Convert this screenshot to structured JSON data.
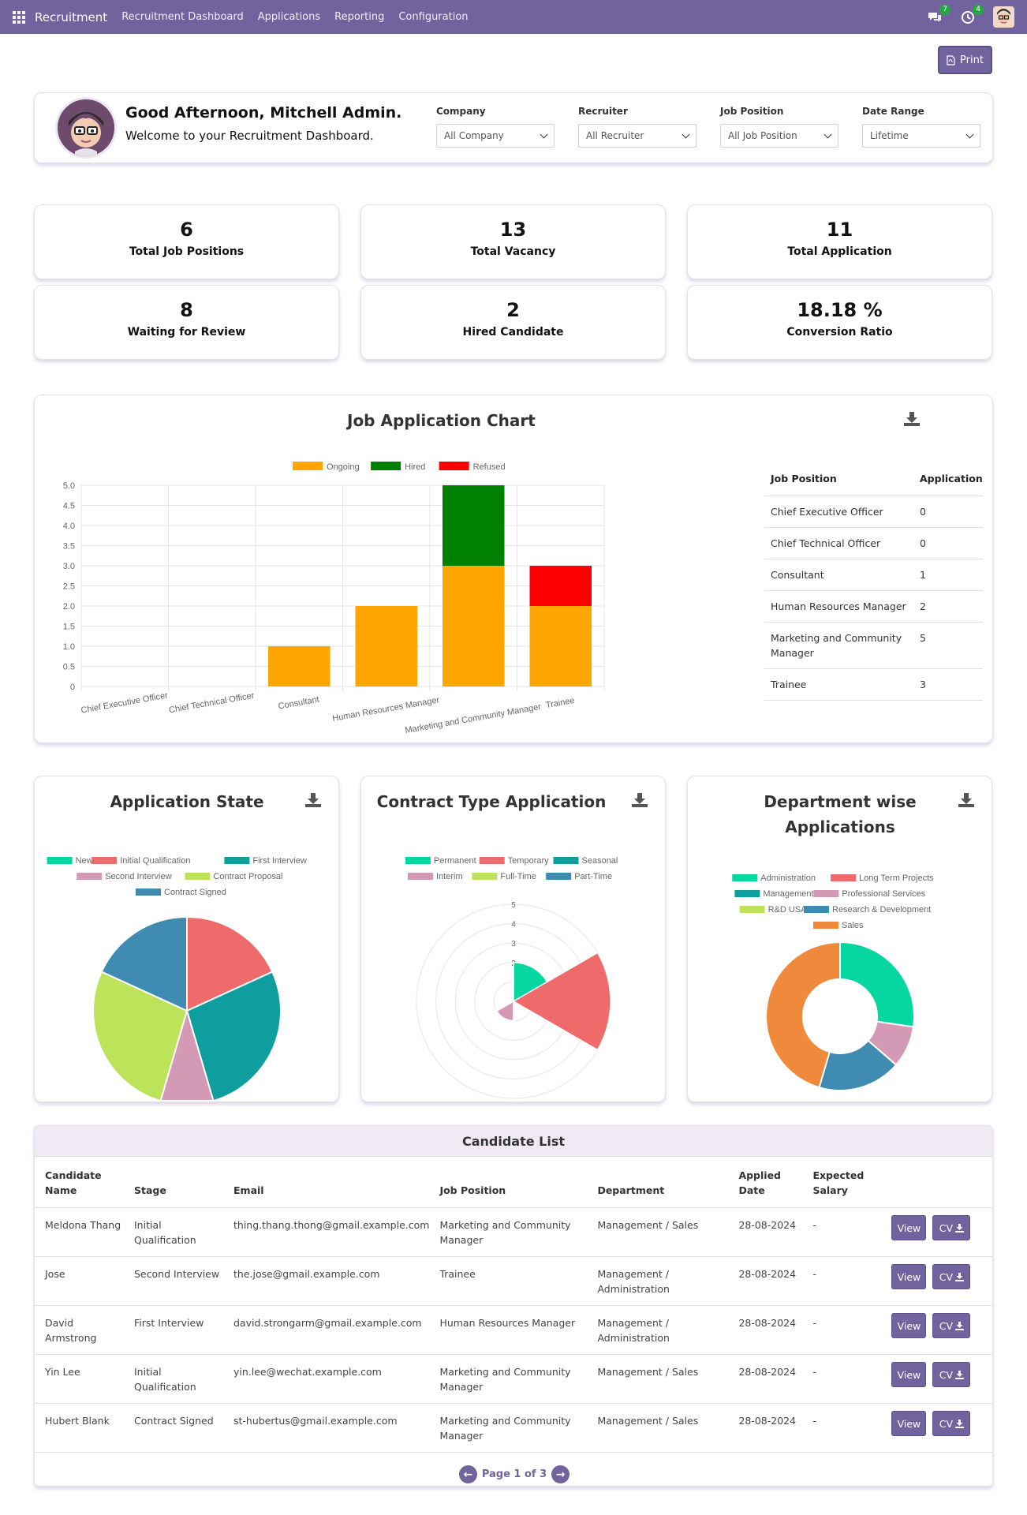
{
  "navbar": {
    "brand": "Recruitment",
    "menu": [
      "Recruitment Dashboard",
      "Applications",
      "Reporting",
      "Configuration"
    ],
    "messages_badge": "7",
    "activities_badge": "4"
  },
  "print_label": "Print",
  "welcome": {
    "greeting": "Good Afternoon, Mitchell Admin.",
    "subtitle": "Welcome to your Recruitment Dashboard."
  },
  "filters": [
    {
      "label": "Company",
      "value": "All Company"
    },
    {
      "label": "Recruiter",
      "value": "All Recruiter"
    },
    {
      "label": "Job Position",
      "value": "All Job Position"
    },
    {
      "label": "Date Range",
      "value": "Lifetime"
    }
  ],
  "stats": [
    {
      "value": "6",
      "label": "Total Job Positions"
    },
    {
      "value": "13",
      "label": "Total Vacancy"
    },
    {
      "value": "11",
      "label": "Total Application"
    },
    {
      "value": "8",
      "label": "Waiting for Review"
    },
    {
      "value": "2",
      "label": "Hired Candidate"
    },
    {
      "value": "18.18 %",
      "label": "Conversion Ratio"
    }
  ],
  "job_chart_title": "Job Application Chart",
  "job_table": {
    "headers": [
      "Job Position",
      "Application"
    ],
    "rows": [
      [
        "Chief Executive Officer",
        "0"
      ],
      [
        "Chief Technical Officer",
        "0"
      ],
      [
        "Consultant",
        "1"
      ],
      [
        "Human Resources Manager",
        "2"
      ],
      [
        "Marketing and Community Manager",
        "5"
      ],
      [
        "Trainee",
        "3"
      ]
    ]
  },
  "small_charts": {
    "state_title": "Application State",
    "contract_title": "Contract Type Application",
    "dept_title": "Department wise Applications"
  },
  "chart_data": [
    {
      "type": "bar",
      "stacked": true,
      "title": "Job Application Chart",
      "categories": [
        "Chief Executive Officer",
        "Chief Technical Officer",
        "Consultant",
        "Human Resources Manager",
        "Marketing and Community Manager",
        "Trainee"
      ],
      "series": [
        {
          "name": "Ongoing",
          "color": "#ffa500",
          "values": [
            0,
            0,
            1,
            2,
            3,
            2
          ]
        },
        {
          "name": "Hired",
          "color": "#008000",
          "values": [
            0,
            0,
            0,
            0,
            2,
            0
          ]
        },
        {
          "name": "Refused",
          "color": "#ff0000",
          "values": [
            0,
            0,
            0,
            0,
            0,
            1
          ]
        }
      ],
      "ylim": [
        0,
        5
      ],
      "yticks": [
        "0",
        "0.5",
        "1.0",
        "1.5",
        "2.0",
        "2.5",
        "3.0",
        "3.5",
        "4.0",
        "4.5",
        "5.0"
      ],
      "legend": "top",
      "grid": true
    },
    {
      "type": "pie",
      "title": "Application State",
      "labels": [
        "New",
        "Initial Qualification",
        "First Interview",
        "Second Interview",
        "Contract Proposal",
        "Contract Signed"
      ],
      "colors": [
        "#06d6a0",
        "#ef6a6a",
        "#0f9e9e",
        "#d49ab5",
        "#bde35a",
        "#3f8bb1"
      ],
      "values": [
        0,
        2,
        3,
        1,
        3,
        2
      ],
      "legend": "top"
    },
    {
      "type": "polarArea",
      "title": "Contract Type Application",
      "labels": [
        "Permanent",
        "Temporary",
        "Seasonal",
        "Interim",
        "Full-Time",
        "Part-Time"
      ],
      "colors": [
        "#06d6a0",
        "#ef6a6a",
        "#0f9e9e",
        "#d49ab5",
        "#bde35a",
        "#3f8bb1"
      ],
      "values": [
        2,
        5,
        0,
        1,
        0,
        0
      ],
      "rticks": [
        "2",
        "3",
        "4",
        "5"
      ],
      "legend": "top"
    },
    {
      "type": "doughnut",
      "title": "Department wise Applications",
      "labels": [
        "Administration",
        "Long Term Projects",
        "Management",
        "Professional Services",
        "R&D USA",
        "Research & Development",
        "Sales"
      ],
      "colors": [
        "#06d6a0",
        "#ef6a6a",
        "#0f9e9e",
        "#d49ab5",
        "#bde35a",
        "#3f8bb1",
        "#ef8a3c"
      ],
      "values": [
        3,
        0,
        0,
        1,
        0,
        2,
        5
      ],
      "legend": "top"
    }
  ],
  "candidates": {
    "title": "Candidate List",
    "headers": [
      "Candidate Name",
      "Stage",
      "Email",
      "Job Position",
      "Department",
      "Applied Date",
      "Expected Salary"
    ],
    "rows": [
      [
        "Meldona Thang",
        "Initial Qualification",
        "thing.thang.thong@gmail.example.com",
        "Marketing and Community Manager",
        "Management / Sales",
        "28-08-2024",
        "-"
      ],
      [
        "Jose",
        "Second Interview",
        "the.jose@gmail.example.com",
        "Trainee",
        "Management / Administration",
        "28-08-2024",
        "-"
      ],
      [
        "David Armstrong",
        "First Interview",
        "david.strongarm@gmail.example.com",
        "Human Resources Manager",
        "Management / Administration",
        "28-08-2024",
        "-"
      ],
      [
        "Yin Lee",
        "Initial Qualification",
        "yin.lee@wechat.example.com",
        "Marketing and Community Manager",
        "Management / Sales",
        "28-08-2024",
        "-"
      ],
      [
        "Hubert Blank",
        "Contract Signed",
        "st-hubertus@gmail.example.com",
        "Marketing and Community Manager",
        "Management / Sales",
        "28-08-2024",
        "-"
      ]
    ],
    "view_label": "View",
    "cv_label": "CV",
    "page_label": "Page 1 of 3"
  },
  "colors": {
    "accent": "#71639e"
  }
}
